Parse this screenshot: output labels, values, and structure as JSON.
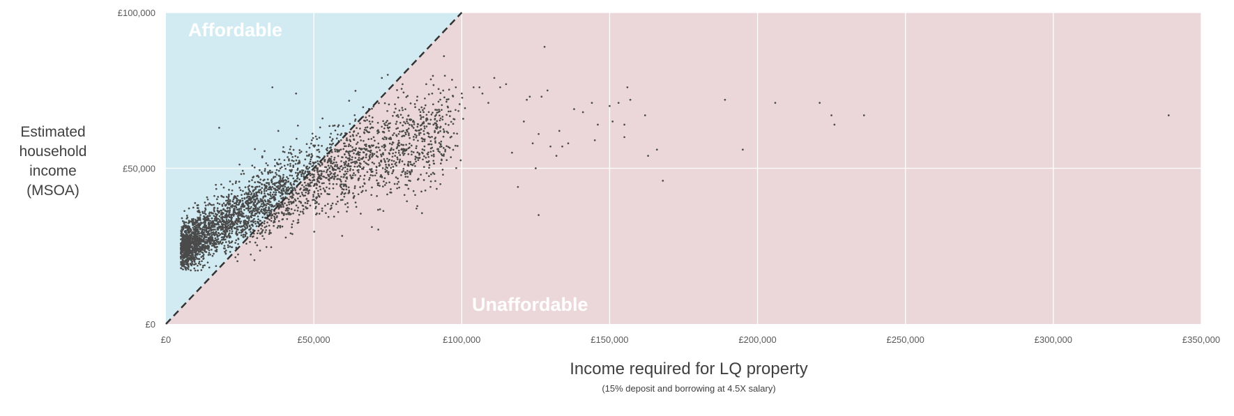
{
  "chart_data": {
    "type": "scatter",
    "title": "",
    "xlabel": "Income required for LQ property",
    "xlabel_sub": "(15% deposit and borrowing at 4.5X salary)",
    "ylabel": "Estimated\nhousehold\nincome\n(MSOA)",
    "xlim": [
      0,
      350000
    ],
    "ylim": [
      0,
      100000
    ],
    "x_ticks": [
      0,
      50000,
      100000,
      150000,
      200000,
      250000,
      300000,
      350000
    ],
    "x_tick_labels": [
      "£0",
      "£50,000",
      "£100,000",
      "£150,000",
      "£200,000",
      "£250,000",
      "£300,000",
      "£350,000"
    ],
    "y_ticks": [
      0,
      50000,
      100000
    ],
    "y_tick_labels": [
      "£0",
      "£50,000",
      "£100,000"
    ],
    "grid": true,
    "regions": {
      "affordable_label": "Affordable",
      "unaffordable_label": "Unaffordable",
      "affordable_color": "#d2ebf2",
      "unaffordable_color": "#ebd7d9"
    },
    "parity_line": {
      "x": [
        0,
        100000
      ],
      "y": [
        0,
        100000
      ],
      "style": "dashed"
    },
    "marker_color": "#4a4a4a",
    "dense_cluster": {
      "description_x_range": [
        5000,
        100000
      ],
      "approx_points": 3500
    },
    "series": [
      {
        "points": [
          [
            18000,
            63000
          ],
          [
            36000,
            76000
          ],
          [
            38000,
            62000
          ],
          [
            44000,
            74000
          ],
          [
            73000,
            79000
          ],
          [
            75000,
            80000
          ],
          [
            80000,
            77000
          ],
          [
            85000,
            73000
          ],
          [
            88000,
            77000
          ],
          [
            90000,
            74000
          ],
          [
            94000,
            86000
          ],
          [
            98000,
            76000
          ],
          [
            100000,
            74000
          ],
          [
            104000,
            76000
          ],
          [
            106000,
            76000
          ],
          [
            107000,
            74000
          ],
          [
            109000,
            71000
          ],
          [
            111000,
            79000
          ],
          [
            113000,
            76000
          ],
          [
            115000,
            77000
          ],
          [
            117000,
            55000
          ],
          [
            119000,
            44000
          ],
          [
            121000,
            65000
          ],
          [
            122000,
            72000
          ],
          [
            123000,
            73000
          ],
          [
            124000,
            58000
          ],
          [
            125000,
            50000
          ],
          [
            126000,
            35000
          ],
          [
            126000,
            61000
          ],
          [
            127000,
            73000
          ],
          [
            128000,
            89000
          ],
          [
            129000,
            75000
          ],
          [
            130000,
            57000
          ],
          [
            132000,
            54000
          ],
          [
            133000,
            62000
          ],
          [
            134000,
            57000
          ],
          [
            136000,
            58000
          ],
          [
            138000,
            69000
          ],
          [
            141000,
            68000
          ],
          [
            144000,
            71000
          ],
          [
            145000,
            59000
          ],
          [
            146000,
            64000
          ],
          [
            150000,
            70000
          ],
          [
            151000,
            65000
          ],
          [
            153000,
            71000
          ],
          [
            155000,
            64000
          ],
          [
            155000,
            60000
          ],
          [
            156000,
            76000
          ],
          [
            157000,
            72000
          ],
          [
            162000,
            67000
          ],
          [
            163000,
            54000
          ],
          [
            166000,
            56000
          ],
          [
            168000,
            46000
          ],
          [
            189000,
            72000
          ],
          [
            195000,
            56000
          ],
          [
            206000,
            71000
          ],
          [
            221000,
            71000
          ],
          [
            225000,
            67000
          ],
          [
            226000,
            64000
          ],
          [
            236000,
            67000
          ],
          [
            339000,
            67000
          ]
        ]
      }
    ]
  }
}
